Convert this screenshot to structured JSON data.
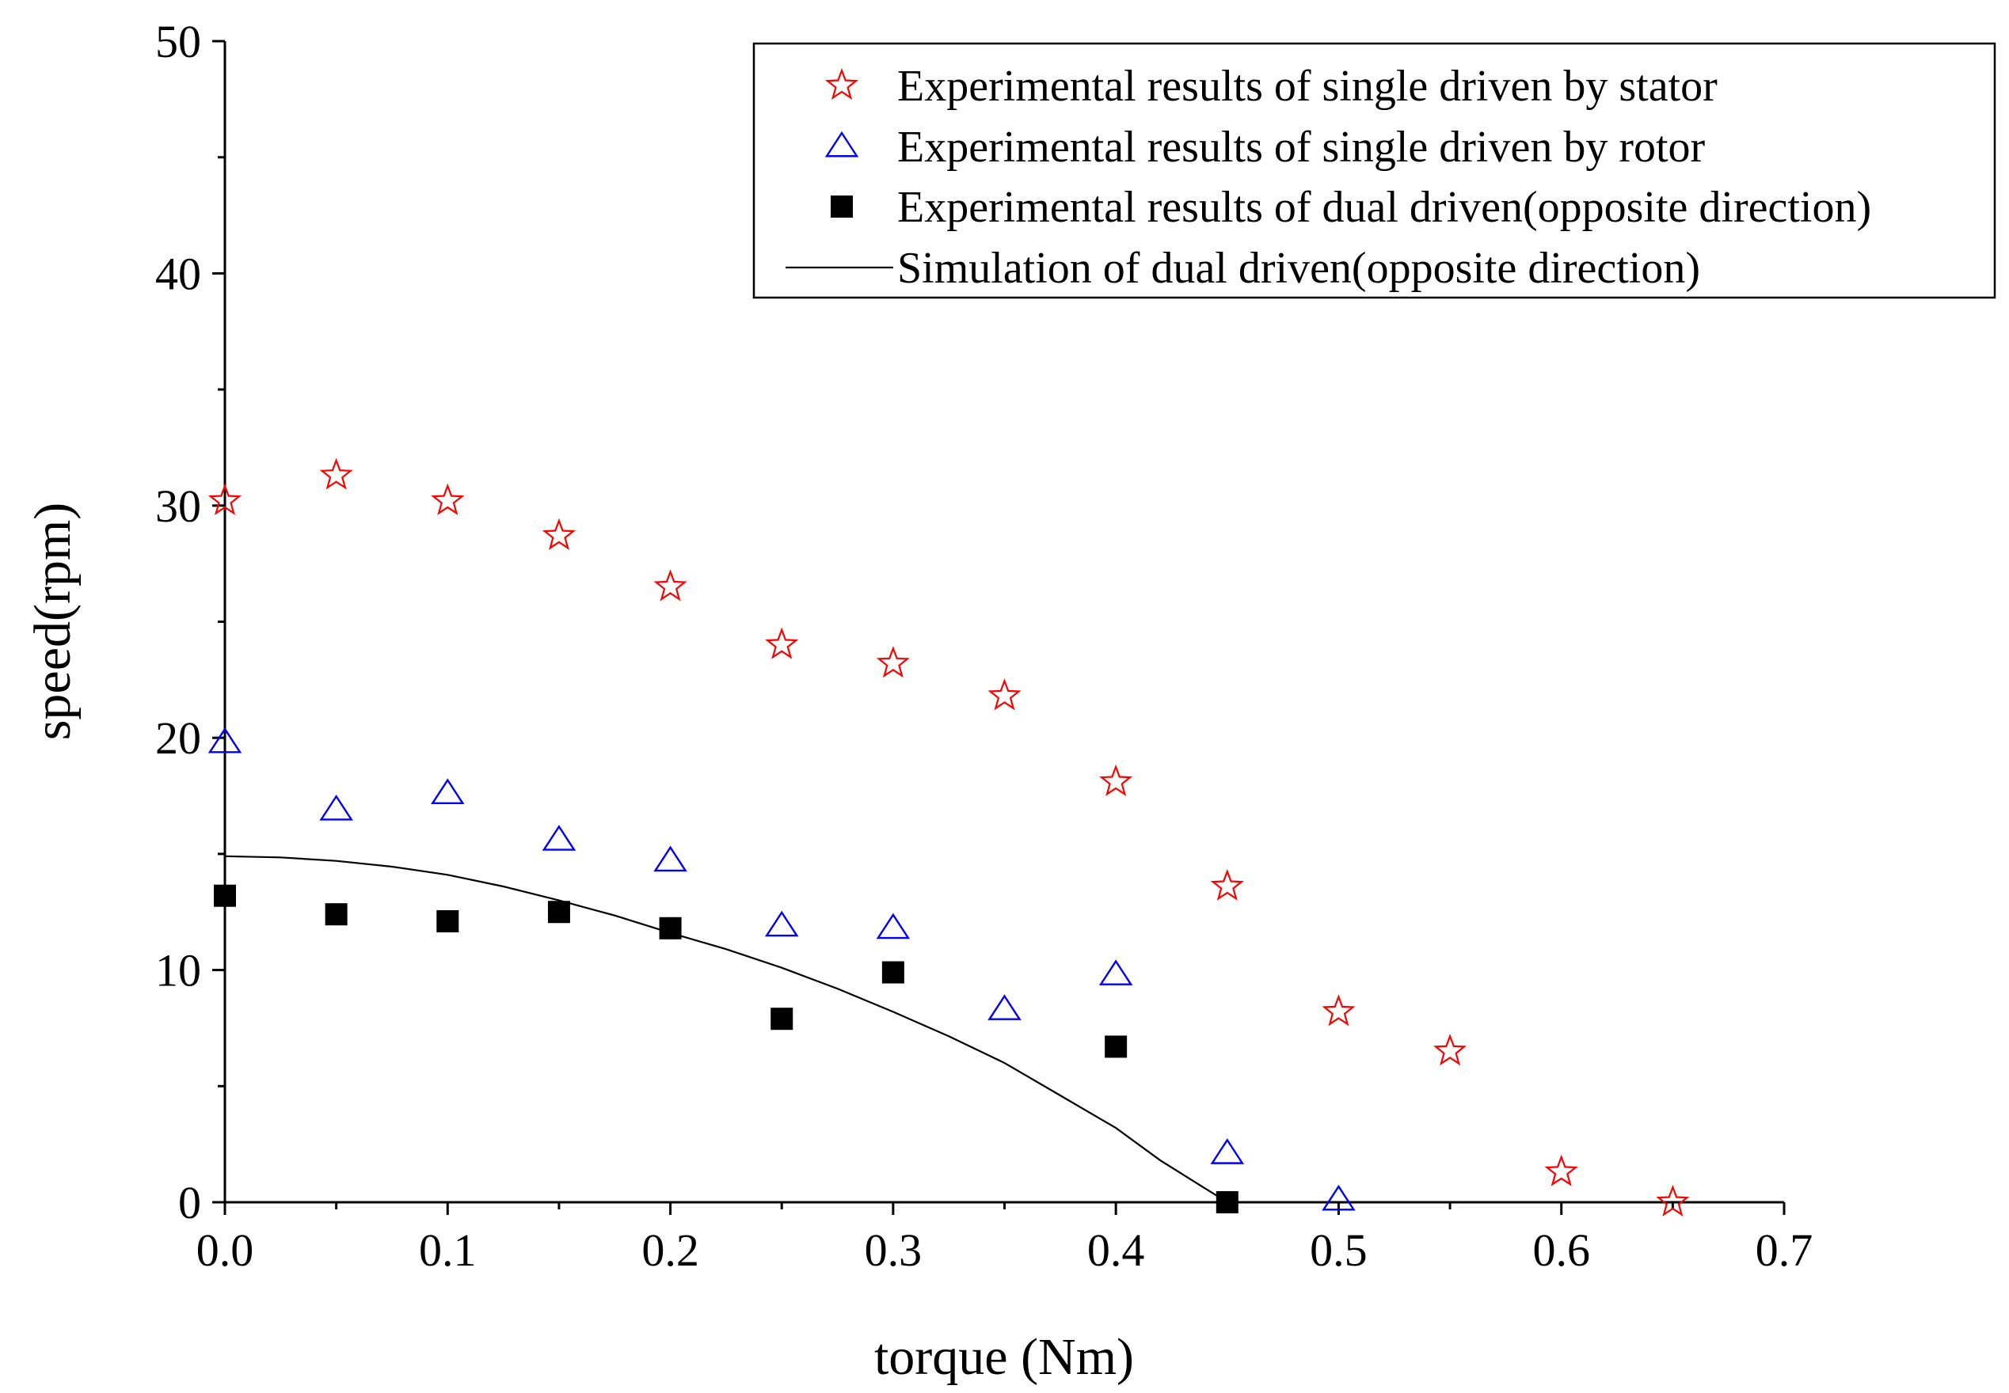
{
  "chart_data": {
    "type": "scatter",
    "title": "",
    "xlabel": "torque (Nm)",
    "ylabel": "speed(rpm)",
    "xlim": [
      0,
      0.7
    ],
    "ylim": [
      0,
      50
    ],
    "xticks": [
      "0.0",
      "0.1",
      "0.2",
      "0.3",
      "0.4",
      "0.5",
      "0.6",
      "0.7"
    ],
    "yticks": [
      "0",
      "10",
      "20",
      "30",
      "40",
      "50"
    ],
    "grid": false,
    "legend_position": "top-right",
    "series": [
      {
        "name": "Experimental results of single driven by stator",
        "marker": "star-open",
        "color": "#ff0000",
        "x": [
          0.0,
          0.05,
          0.1,
          0.15,
          0.2,
          0.25,
          0.3,
          0.35,
          0.4,
          0.45,
          0.5,
          0.55,
          0.6,
          0.65
        ],
        "y": [
          30.2,
          31.3,
          30.2,
          28.7,
          26.5,
          24.0,
          23.2,
          21.8,
          18.1,
          13.6,
          8.2,
          6.5,
          1.3,
          0.0
        ]
      },
      {
        "name": "Experimental results of single driven by rotor",
        "marker": "triangle-open",
        "color": "#0000ff",
        "x": [
          0.0,
          0.05,
          0.1,
          0.15,
          0.2,
          0.25,
          0.3,
          0.35,
          0.4,
          0.45,
          0.5
        ],
        "y": [
          19.8,
          16.9,
          17.6,
          15.6,
          14.7,
          11.9,
          11.8,
          8.3,
          9.8,
          2.1,
          0.1
        ]
      },
      {
        "name": "Experimental results of dual driven(opposite direction)",
        "marker": "square-filled",
        "color": "#000000",
        "x": [
          0.0,
          0.05,
          0.1,
          0.15,
          0.2,
          0.25,
          0.3,
          0.4,
          0.45
        ],
        "y": [
          13.2,
          12.4,
          12.1,
          12.5,
          11.8,
          7.9,
          9.9,
          6.7,
          0.0
        ]
      },
      {
        "name": "Simulation of dual driven(opposite direction)",
        "marker": "line",
        "color": "#000000",
        "x": [
          0.0,
          0.025,
          0.05,
          0.075,
          0.1,
          0.125,
          0.15,
          0.175,
          0.2,
          0.225,
          0.25,
          0.275,
          0.3,
          0.325,
          0.35,
          0.375,
          0.4,
          0.42,
          0.44,
          0.45
        ],
        "y": [
          14.9,
          14.85,
          14.7,
          14.45,
          14.1,
          13.6,
          13.0,
          12.35,
          11.6,
          10.9,
          10.1,
          9.2,
          8.2,
          7.15,
          6.0,
          4.6,
          3.2,
          1.8,
          0.6,
          0.0
        ]
      }
    ]
  }
}
